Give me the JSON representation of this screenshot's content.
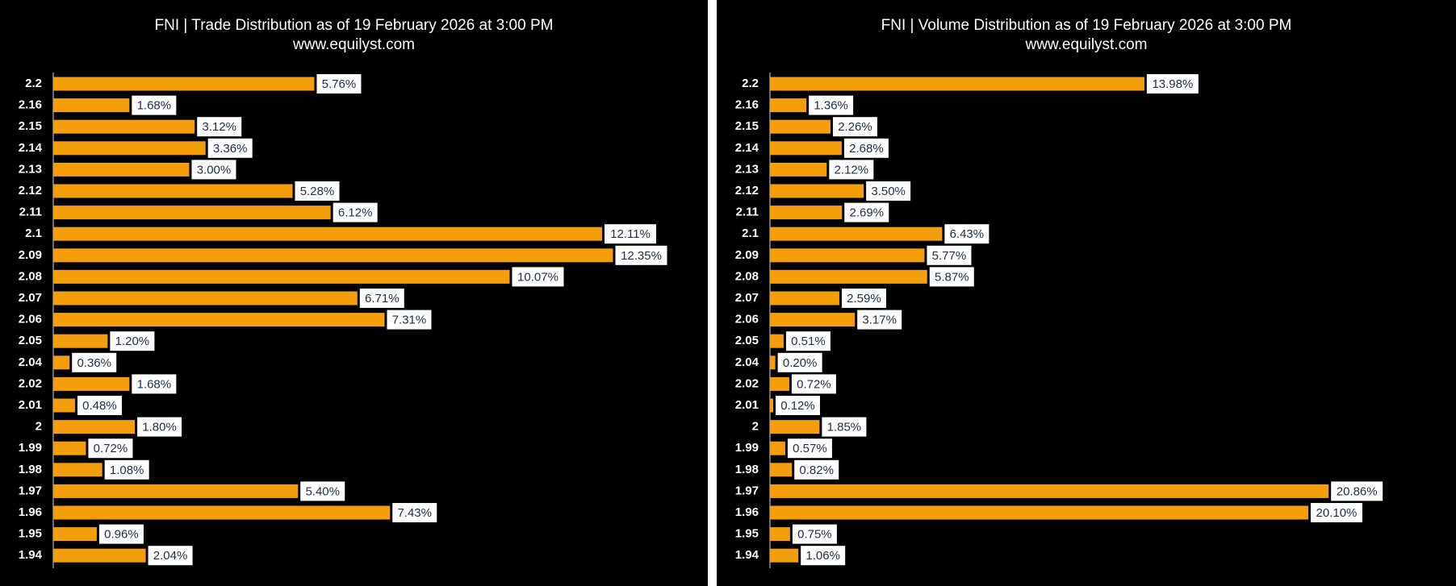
{
  "chart_data": [
    {
      "type": "bar",
      "title": "FNI | Trade Distribution as of 19 February 2026 at 3:00 PM",
      "subtitle": "www.equilyst.com",
      "categories": [
        "2.2",
        "2.16",
        "2.15",
        "2.14",
        "2.13",
        "2.12",
        "2.11",
        "2.1",
        "2.09",
        "2.08",
        "2.07",
        "2.06",
        "2.05",
        "2.04",
        "2.02",
        "2.01",
        "2",
        "1.99",
        "1.98",
        "1.97",
        "1.96",
        "1.95",
        "1.94"
      ],
      "values": [
        5.76,
        1.68,
        3.12,
        3.36,
        3.0,
        5.28,
        6.12,
        12.11,
        12.35,
        10.07,
        6.71,
        7.31,
        1.2,
        0.36,
        1.68,
        0.48,
        1.8,
        0.72,
        1.08,
        5.4,
        7.43,
        0.96,
        2.04
      ],
      "value_labels": [
        "5.76%",
        "1.68%",
        "3.12%",
        "3.36%",
        "3.00%",
        "5.28%",
        "6.12%",
        "12.11%",
        "12.35%",
        "10.07%",
        "6.71%",
        "7.31%",
        "1.20%",
        "0.36%",
        "1.68%",
        "0.48%",
        "1.80%",
        "0.72%",
        "1.08%",
        "5.40%",
        "7.43%",
        "0.96%",
        "2.04%"
      ],
      "color": "#f59e0b",
      "xlim": [
        0,
        13
      ]
    },
    {
      "type": "bar",
      "title": "FNI | Volume Distribution as of 19 February 2026 at 3:00 PM",
      "subtitle": "www.equilyst.com",
      "categories": [
        "2.2",
        "2.16",
        "2.15",
        "2.14",
        "2.13",
        "2.12",
        "2.11",
        "2.1",
        "2.09",
        "2.08",
        "2.07",
        "2.06",
        "2.05",
        "2.04",
        "2.02",
        "2.01",
        "2",
        "1.99",
        "1.98",
        "1.97",
        "1.96",
        "1.95",
        "1.94"
      ],
      "values": [
        13.98,
        1.36,
        2.26,
        2.68,
        2.12,
        3.5,
        2.69,
        6.43,
        5.77,
        5.87,
        2.59,
        3.17,
        0.51,
        0.2,
        0.72,
        0.12,
        1.85,
        0.57,
        0.82,
        20.86,
        20.1,
        0.75,
        1.06
      ],
      "value_labels": [
        "13.98%",
        "1.36%",
        "2.26%",
        "2.68%",
        "2.12%",
        "3.50%",
        "2.69%",
        "6.43%",
        "5.77%",
        "5.87%",
        "2.59%",
        "3.17%",
        "0.51%",
        "0.20%",
        "0.72%",
        "0.12%",
        "1.85%",
        "0.57%",
        "0.82%",
        "20.86%",
        "20.10%",
        "0.75%",
        "1.06%"
      ],
      "color": "#f59e0b",
      "xlim": [
        0,
        22
      ]
    }
  ]
}
